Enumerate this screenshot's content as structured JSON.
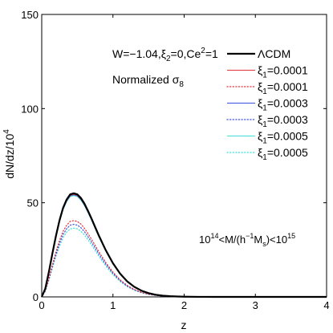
{
  "chart_data": {
    "type": "line",
    "xlabel": "z",
    "ylabel": "dN/dz/10",
    "ylabel_sup": "4",
    "xlim": [
      0,
      4
    ],
    "ylim": [
      0,
      150
    ],
    "xticks": [
      "0",
      "1",
      "2",
      "3",
      "4"
    ],
    "yticks": [
      "0",
      "50",
      "100",
      "150"
    ],
    "annotations": {
      "params": "W=−1.04,ξ",
      "params_sub": "2",
      "params_rest": "=0,Ce",
      "params_sup": "2",
      "params_end": "=1",
      "norm_text": "Normalized σ",
      "norm_sub": "8",
      "mass_a": "10",
      "mass_a_sup": "14",
      "mass_b": "<M/(h",
      "mass_b_sup": "−1",
      "mass_c": "M",
      "mass_c_sub": "s",
      "mass_d": ")<10",
      "mass_d_sup": "15"
    },
    "legend_placement": "top-right",
    "legend": [
      {
        "text": "ΛCDM"
      },
      {
        "pre": "ξ",
        "sub": "1",
        "text": "=0.0001"
      },
      {
        "pre": "ξ",
        "sub": "1",
        "text": "=0.0001"
      },
      {
        "pre": "ξ",
        "sub": "1",
        "text": "=0.0003"
      },
      {
        "pre": "ξ",
        "sub": "1",
        "text": "=0.0003"
      },
      {
        "pre": "ξ",
        "sub": "1",
        "text": "=0.0005"
      },
      {
        "pre": "ξ",
        "sub": "1",
        "text": "=0.0005"
      }
    ],
    "series": [
      {
        "color": "#000000",
        "style": "solid",
        "width": 2.2,
        "peak": 55.0
      },
      {
        "color": "#e0303a",
        "style": "solid",
        "width": 1,
        "peak": 54.5
      },
      {
        "color": "#e0303a",
        "style": "dotted",
        "width": 1.2,
        "peak": 40.5
      },
      {
        "color": "#3a4ee0",
        "style": "solid",
        "width": 1,
        "peak": 54.2
      },
      {
        "color": "#3a4ee0",
        "style": "dotted",
        "width": 1.2,
        "peak": 38.5
      },
      {
        "color": "#40e0d8",
        "style": "solid",
        "width": 1,
        "peak": 53.8
      },
      {
        "color": "#40e0d8",
        "style": "dotted",
        "width": 1.2,
        "peak": 36.5
      }
    ],
    "x": [
      0,
      0.05,
      0.1,
      0.15,
      0.2,
      0.25,
      0.3,
      0.35,
      0.4,
      0.45,
      0.5,
      0.55,
      0.6,
      0.65,
      0.7,
      0.75,
      0.8,
      0.9,
      1.0,
      1.1,
      1.2,
      1.3,
      1.4,
      1.5,
      1.6,
      1.7,
      1.8,
      1.9,
      2.0,
      2.2,
      2.4,
      2.6,
      2.8,
      3.0,
      3.5,
      4.0
    ],
    "shape": [
      0,
      0.08,
      0.24,
      0.42,
      0.59,
      0.74,
      0.86,
      0.94,
      0.99,
      1.0,
      0.99,
      0.955,
      0.9,
      0.83,
      0.755,
      0.675,
      0.595,
      0.45,
      0.325,
      0.225,
      0.15,
      0.097,
      0.06,
      0.036,
      0.021,
      0.012,
      0.0068,
      0.0037,
      0.002,
      0.0006,
      0.00016,
      4e-05,
      1e-05,
      0,
      0,
      0
    ]
  }
}
